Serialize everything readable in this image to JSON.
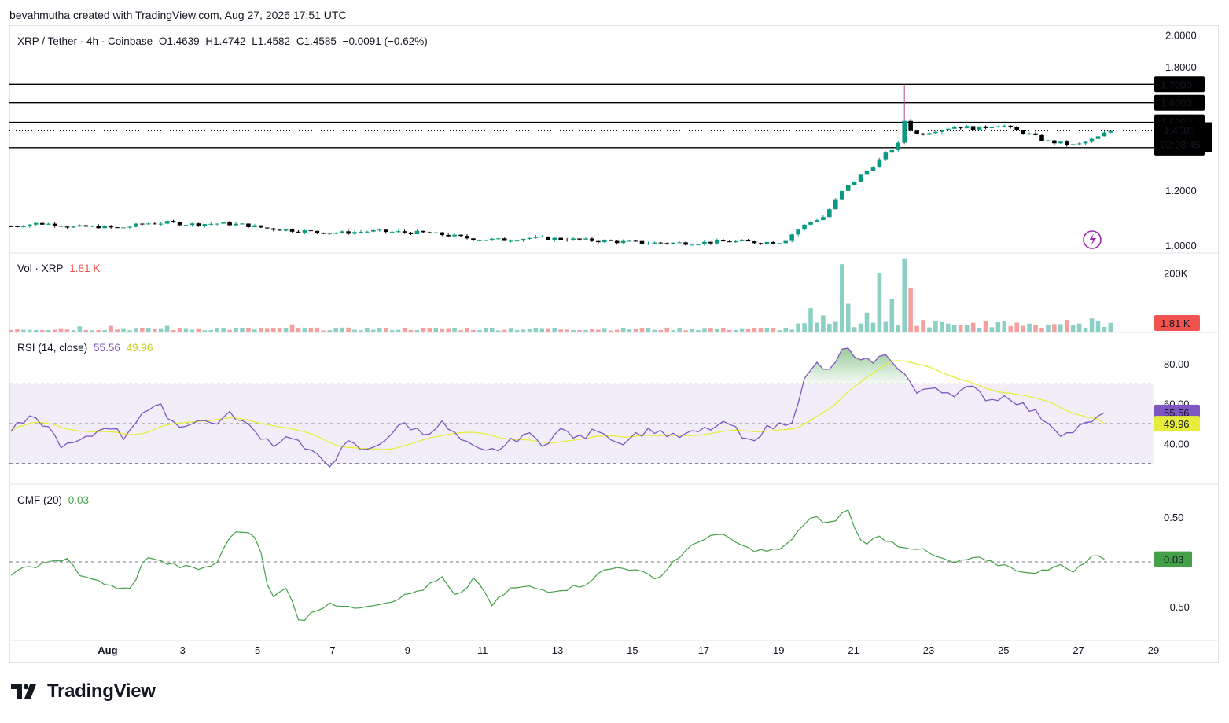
{
  "header": {
    "credit": "bevahmutha created with TradingView.com, Aug 27, 2026 17:51 UTC"
  },
  "legend": {
    "symbol": "XRP / Tether · 4h · Coinbase",
    "open": "O1.4639",
    "high": "H1.4742",
    "low": "L1.4582",
    "close": "C1.4585",
    "change": "−0.0091 (−0.62%)"
  },
  "volume_legend": {
    "title": "Vol · XRP",
    "value": "1.81 K"
  },
  "rsi_legend": {
    "title": "RSI (14, close)",
    "value": "55.56",
    "ma": "49.96"
  },
  "cmf_legend": {
    "title": "CMF (20)",
    "value": "0.03"
  },
  "footer": {
    "brand": "TradingView"
  },
  "colors": {
    "up": "#089981",
    "down": "#000000",
    "up_vol": "#8ccfc4",
    "down_vol": "#f4a09e",
    "rsi": "#7e57c2",
    "rsi_ma": "#e6ed3b",
    "cmf": "#43a047",
    "price_tag": "#000000",
    "vol_tag": "#f05350"
  },
  "chart_data": [
    {
      "type": "candlestick",
      "title": "XRP / Tether · 4h · Coinbase",
      "price_scale_ticks": [
        "2.0000",
        "1.8000",
        "1.7000",
        "1.6000",
        "1.5000",
        "1.4585",
        "1.3800",
        "1.2000",
        "1.0000"
      ],
      "ylim": [
        0.98,
        2.05
      ],
      "log_scale": true,
      "horizontal_levels": [
        1.7,
        1.6,
        1.5,
        1.38
      ],
      "last_price": "1.4585",
      "countdown": "02:08:45",
      "time_ticks": [
        "Aug",
        "3",
        "5",
        "7",
        "9",
        "11",
        "13",
        "15",
        "17",
        "19",
        "21",
        "23",
        "25",
        "27",
        "29"
      ],
      "x_start_day": -1.6,
      "x_end_day": 28.9,
      "anchors": [
        [
          -1.6,
          1.065
        ],
        [
          -0.9,
          1.075
        ],
        [
          -0.4,
          1.072
        ],
        [
          0.0,
          1.062
        ],
        [
          0.8,
          1.064
        ],
        [
          1.2,
          1.058
        ],
        [
          1.6,
          1.065
        ],
        [
          2.0,
          1.075
        ],
        [
          2.6,
          1.078
        ],
        [
          3.2,
          1.072
        ],
        [
          4.0,
          1.075
        ],
        [
          4.6,
          1.07
        ],
        [
          5.2,
          1.058
        ],
        [
          6.0,
          1.05
        ],
        [
          6.5,
          1.045
        ],
        [
          7.2,
          1.042
        ],
        [
          8.0,
          1.048
        ],
        [
          8.6,
          1.045
        ],
        [
          9.4,
          1.042
        ],
        [
          10.0,
          1.035
        ],
        [
          10.8,
          1.02
        ],
        [
          11.6,
          1.018
        ],
        [
          12.2,
          1.025
        ],
        [
          13.0,
          1.022
        ],
        [
          13.6,
          1.018
        ],
        [
          14.6,
          1.012
        ],
        [
          15.4,
          1.008
        ],
        [
          16.6,
          1.008
        ],
        [
          17.5,
          1.013
        ],
        [
          18.4,
          1.01
        ],
        [
          19.0,
          1.012
        ],
        [
          19.3,
          1.045
        ],
        [
          19.7,
          1.08
        ],
        [
          20.1,
          1.1
        ],
        [
          20.4,
          1.16
        ],
        [
          20.6,
          1.2
        ],
        [
          21.0,
          1.25
        ],
        [
          21.4,
          1.3
        ],
        [
          21.8,
          1.36
        ],
        [
          22.1,
          1.4
        ],
        [
          22.2,
          1.52
        ],
        [
          22.35,
          1.47
        ],
        [
          22.6,
          1.44
        ],
        [
          23.0,
          1.46
        ],
        [
          23.6,
          1.48
        ],
        [
          24.2,
          1.47
        ],
        [
          24.8,
          1.49
        ],
        [
          25.2,
          1.46
        ],
        [
          25.6,
          1.44
        ],
        [
          26.0,
          1.41
        ],
        [
          26.4,
          1.4
        ],
        [
          26.8,
          1.39
        ],
        [
          27.3,
          1.42
        ],
        [
          27.7,
          1.4585
        ]
      ],
      "max_high": 1.7
    },
    {
      "type": "bar",
      "title": "Vol · XRP",
      "axis_ticks": [
        "200K"
      ],
      "last_value": "1.81 K",
      "ylim": [
        0,
        260
      ],
      "spikes": [
        [
          2.6,
          20
        ],
        [
          0.3,
          18
        ],
        [
          1.1,
          20
        ],
        [
          5.9,
          25
        ],
        [
          19.7,
          80
        ],
        [
          20.1,
          55
        ],
        [
          20.5,
          230
        ],
        [
          20.8,
          95
        ],
        [
          21.3,
          65
        ],
        [
          21.6,
          200
        ],
        [
          21.85,
          110
        ],
        [
          22.2,
          250
        ],
        [
          22.4,
          150
        ],
        [
          22.8,
          40
        ],
        [
          24.9,
          35
        ],
        [
          26.6,
          40
        ],
        [
          27.3,
          45
        ]
      ]
    },
    {
      "type": "line",
      "title": "RSI (14, close)",
      "axis_ticks": [
        "80.00",
        "60.00",
        "40.00"
      ],
      "bands": [
        30,
        50,
        70
      ],
      "ylim": [
        20,
        95
      ],
      "last_value": "55.56",
      "ma_last_value": "49.96",
      "anchors": [
        [
          -1.6,
          47
        ],
        [
          -1.1,
          52
        ],
        [
          -0.7,
          50
        ],
        [
          -0.2,
          38
        ],
        [
          0.4,
          42
        ],
        [
          1.0,
          50
        ],
        [
          1.4,
          43
        ],
        [
          1.9,
          56
        ],
        [
          2.4,
          58
        ],
        [
          2.9,
          48
        ],
        [
          3.3,
          52
        ],
        [
          3.8,
          50
        ],
        [
          4.3,
          55
        ],
        [
          4.9,
          46
        ],
        [
          5.4,
          40
        ],
        [
          5.9,
          44
        ],
        [
          6.3,
          36
        ],
        [
          6.9,
          30
        ],
        [
          7.4,
          40
        ],
        [
          7.9,
          36
        ],
        [
          8.4,
          43
        ],
        [
          8.9,
          50
        ],
        [
          9.4,
          45
        ],
        [
          9.9,
          50
        ],
        [
          10.5,
          40
        ],
        [
          11.0,
          35
        ],
        [
          11.5,
          38
        ],
        [
          12.1,
          45
        ],
        [
          12.6,
          40
        ],
        [
          13.1,
          47
        ],
        [
          13.6,
          42
        ],
        [
          14.1,
          48
        ],
        [
          14.6,
          40
        ],
        [
          15.1,
          45
        ],
        [
          15.6,
          47
        ],
        [
          16.1,
          43
        ],
        [
          16.6,
          45
        ],
        [
          17.1,
          48
        ],
        [
          17.6,
          50
        ],
        [
          18.0,
          40
        ],
        [
          18.5,
          47
        ],
        [
          19.0,
          50
        ],
        [
          19.3,
          53
        ],
        [
          19.5,
          70
        ],
        [
          19.9,
          80
        ],
        [
          20.3,
          75
        ],
        [
          20.6,
          90
        ],
        [
          21.0,
          80
        ],
        [
          21.4,
          82
        ],
        [
          21.8,
          84
        ],
        [
          22.1,
          78
        ],
        [
          22.35,
          72
        ],
        [
          22.6,
          64
        ],
        [
          23.0,
          69
        ],
        [
          23.5,
          65
        ],
        [
          24.0,
          68
        ],
        [
          24.5,
          62
        ],
        [
          25.0,
          64
        ],
        [
          25.5,
          58
        ],
        [
          26.0,
          52
        ],
        [
          26.5,
          44
        ],
        [
          26.9,
          48
        ],
        [
          27.4,
          52
        ],
        [
          27.7,
          55.56
        ]
      ]
    },
    {
      "type": "line",
      "title": "CMF (20)",
      "axis_ticks": [
        "0.50",
        "-0.50"
      ],
      "ylim": [
        -0.85,
        0.85
      ],
      "last_value": "0.03",
      "anchors": [
        [
          -1.6,
          -0.15
        ],
        [
          -1.1,
          -0.05
        ],
        [
          -0.6,
          -0.02
        ],
        [
          -0.1,
          0.05
        ],
        [
          0.3,
          -0.18
        ],
        [
          0.8,
          -0.22
        ],
        [
          1.3,
          -0.32
        ],
        [
          1.7,
          -0.25
        ],
        [
          2.0,
          0.08
        ],
        [
          2.4,
          0.0
        ],
        [
          2.9,
          -0.05
        ],
        [
          3.4,
          -0.08
        ],
        [
          3.9,
          -0.02
        ],
        [
          4.2,
          0.28
        ],
        [
          4.6,
          0.35
        ],
        [
          5.0,
          0.28
        ],
        [
          5.3,
          -0.42
        ],
        [
          5.8,
          -0.28
        ],
        [
          6.1,
          -0.68
        ],
        [
          6.5,
          -0.55
        ],
        [
          6.9,
          -0.45
        ],
        [
          7.4,
          -0.52
        ],
        [
          7.9,
          -0.48
        ],
        [
          8.4,
          -0.45
        ],
        [
          8.9,
          -0.38
        ],
        [
          9.4,
          -0.3
        ],
        [
          9.9,
          -0.18
        ],
        [
          10.3,
          -0.42
        ],
        [
          10.8,
          -0.15
        ],
        [
          11.2,
          -0.5
        ],
        [
          11.7,
          -0.3
        ],
        [
          12.2,
          -0.28
        ],
        [
          12.7,
          -0.32
        ],
        [
          13.2,
          -0.3
        ],
        [
          13.7,
          -0.25
        ],
        [
          14.2,
          -0.1
        ],
        [
          14.7,
          -0.05
        ],
        [
          15.2,
          -0.12
        ],
        [
          15.7,
          -0.18
        ],
        [
          16.1,
          0.02
        ],
        [
          16.6,
          0.18
        ],
        [
          17.0,
          0.3
        ],
        [
          17.5,
          0.28
        ],
        [
          18.0,
          0.15
        ],
        [
          18.5,
          0.12
        ],
        [
          19.0,
          0.14
        ],
        [
          19.4,
          0.35
        ],
        [
          19.8,
          0.5
        ],
        [
          20.3,
          0.42
        ],
        [
          20.7,
          0.6
        ],
        [
          21.1,
          0.2
        ],
        [
          21.6,
          0.28
        ],
        [
          22.1,
          0.18
        ],
        [
          22.6,
          0.15
        ],
        [
          23.1,
          0.05
        ],
        [
          23.6,
          -0.02
        ],
        [
          24.1,
          0.05
        ],
        [
          24.6,
          -0.02
        ],
        [
          25.1,
          -0.05
        ],
        [
          25.5,
          -0.15
        ],
        [
          25.9,
          -0.08
        ],
        [
          26.4,
          -0.05
        ],
        [
          26.8,
          -0.1
        ],
        [
          27.2,
          0.05
        ],
        [
          27.6,
          0.08
        ],
        [
          27.7,
          0.03
        ]
      ]
    }
  ]
}
